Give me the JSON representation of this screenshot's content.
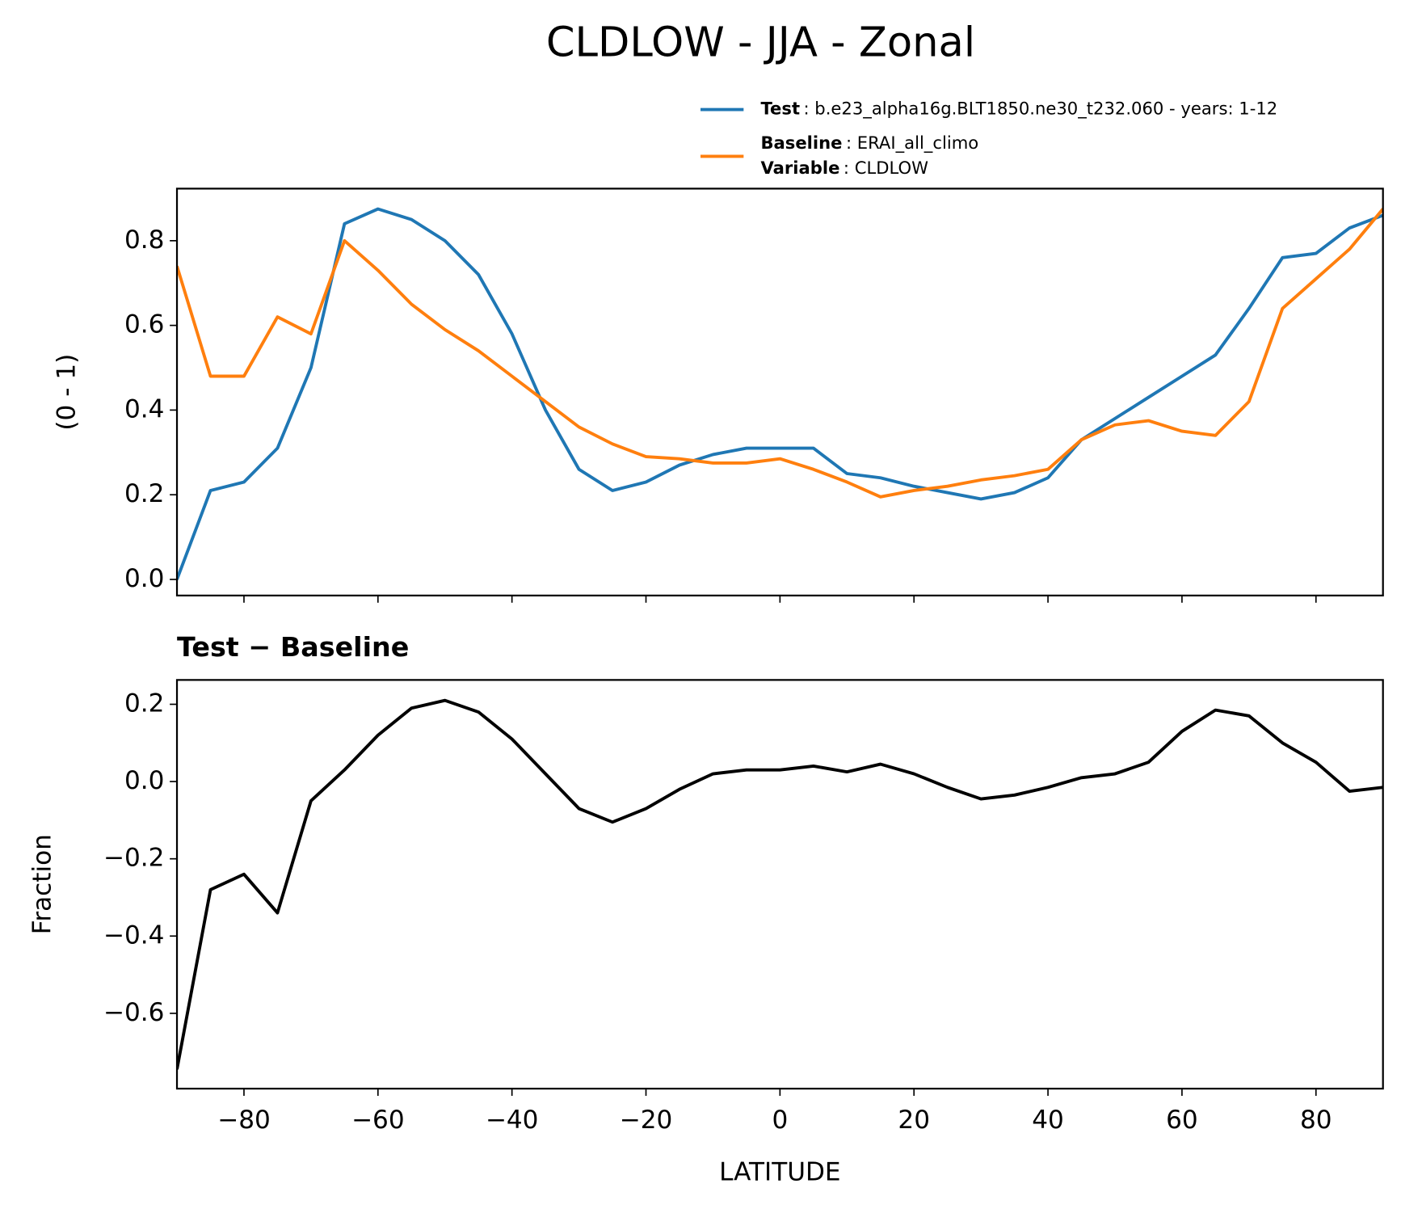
{
  "chart_data": [
    {
      "type": "line",
      "title": "CLDLOW - JJA - Zonal",
      "ylabel": "(0 - 1)",
      "x": [
        -90,
        -85,
        -80,
        -75,
        -70,
        -65,
        -60,
        -55,
        -50,
        -45,
        -40,
        -35,
        -30,
        -25,
        -20,
        -15,
        -10,
        -5,
        0,
        5,
        10,
        15,
        20,
        25,
        30,
        35,
        40,
        45,
        50,
        55,
        60,
        65,
        70,
        75,
        80,
        85,
        90
      ],
      "series": [
        {
          "name": "Test",
          "legend_text": ": b.e23_alpha16g.BLT1850.ne30_t232.060 - years: 1-12",
          "color": "#1f77b4",
          "values": [
            0.0,
            0.21,
            0.23,
            0.31,
            0.5,
            0.84,
            0.875,
            0.85,
            0.8,
            0.72,
            0.58,
            0.4,
            0.26,
            0.21,
            0.23,
            0.27,
            0.295,
            0.31,
            0.31,
            0.31,
            0.25,
            0.24,
            0.22,
            0.205,
            0.19,
            0.205,
            0.24,
            0.33,
            0.38,
            0.43,
            0.48,
            0.53,
            0.64,
            0.76,
            0.77,
            0.83,
            0.86
          ]
        },
        {
          "name": "Baseline",
          "legend_text": ": ERAI_all_climo",
          "legend_extra": {
            "name": "Variable",
            "text": ": CLDLOW"
          },
          "color": "#ff7f0e",
          "values": [
            0.74,
            0.48,
            0.48,
            0.62,
            0.58,
            0.8,
            0.73,
            0.65,
            0.59,
            0.54,
            0.48,
            0.42,
            0.36,
            0.32,
            0.29,
            0.285,
            0.275,
            0.275,
            0.285,
            0.26,
            0.23,
            0.195,
            0.21,
            0.22,
            0.235,
            0.245,
            0.26,
            0.33,
            0.365,
            0.375,
            0.35,
            0.34,
            0.42,
            0.64,
            0.71,
            0.78,
            0.875
          ]
        }
      ],
      "xlim": [
        -90,
        90
      ],
      "xticks": [
        -80,
        -60,
        -40,
        -20,
        0,
        20,
        40,
        60,
        80
      ],
      "ylim": [
        -0.038,
        0.923
      ],
      "yticks": [
        {
          "value": 0,
          "label": "0.0"
        },
        0.2,
        0.4,
        0.6,
        0.8
      ]
    },
    {
      "type": "line",
      "title": "Test − Baseline",
      "ylabel": "Fraction",
      "xlabel": "LATITUDE",
      "x": [
        -90,
        -85,
        -80,
        -75,
        -70,
        -65,
        -60,
        -55,
        -50,
        -45,
        -40,
        -35,
        -30,
        -25,
        -20,
        -15,
        -10,
        -5,
        0,
        5,
        10,
        15,
        20,
        25,
        30,
        35,
        40,
        45,
        50,
        55,
        60,
        65,
        70,
        75,
        80,
        85,
        90
      ],
      "series": [
        {
          "color": "#000000",
          "values": [
            -0.745,
            -0.28,
            -0.24,
            -0.34,
            -0.05,
            0.03,
            0.12,
            0.19,
            0.21,
            0.18,
            0.11,
            0.02,
            -0.07,
            -0.105,
            -0.07,
            -0.02,
            0.02,
            0.03,
            0.03,
            0.04,
            0.025,
            0.045,
            0.02,
            -0.015,
            -0.045,
            -0.035,
            -0.015,
            0.01,
            0.02,
            0.05,
            0.13,
            0.185,
            0.17,
            0.1,
            0.05,
            -0.025,
            -0.015
          ]
        }
      ],
      "xlim": [
        -90,
        90
      ],
      "xticks": [
        {
          "value": -80,
          "label": "−80"
        },
        {
          "value": -60,
          "label": "−60"
        },
        {
          "value": -40,
          "label": "−40"
        },
        {
          "value": -20,
          "label": "−20"
        },
        0,
        20,
        40,
        60,
        80
      ],
      "ylim": [
        -0.795,
        0.263
      ],
      "yticks": [
        {
          "value": -0.6,
          "label": "−0.6"
        },
        {
          "value": -0.4,
          "label": "−0.4"
        },
        {
          "value": -0.2,
          "label": "−0.2"
        },
        {
          "value": 0,
          "label": "0.0"
        },
        0.2
      ]
    }
  ]
}
